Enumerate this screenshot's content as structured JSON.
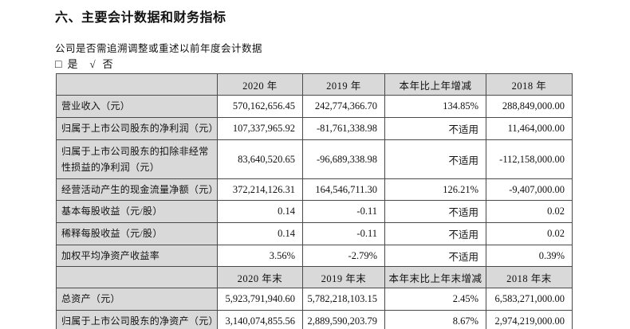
{
  "page": {
    "title": "六、主要会计数据和财务指标",
    "restate_question": "公司是否需追溯调整或重述以前年度会计数据",
    "checkbox": {
      "yes_symbol": "□",
      "yes_label": "是",
      "no_symbol": "√",
      "no_label": "否"
    }
  },
  "colors": {
    "header_bg": "#d9d9d9",
    "border": "#4a4a4a",
    "text": "#111111",
    "page_bg": "#ffffff"
  },
  "table": {
    "header1": [
      "",
      "2020 年",
      "2019 年",
      "本年比上年增减",
      "2018 年"
    ],
    "rows1": [
      {
        "label": "营业收入（元）",
        "y2020": "570,162,656.45",
        "y2019": "242,774,366.70",
        "change": "134.85%",
        "y2018": "288,849,000.00"
      },
      {
        "label": "归属于上市公司股东的净利润（元）",
        "y2020": "107,337,965.92",
        "y2019": "-81,761,338.98",
        "change": "不适用",
        "y2018": "11,464,000.00"
      },
      {
        "label": "归属于上市公司股东的扣除非经常性损益的净利润（元）",
        "y2020": "83,640,520.65",
        "y2019": "-96,689,338.98",
        "change": "不适用",
        "y2018": "-112,158,000.00"
      },
      {
        "label": "经营活动产生的现金流量净额（元）",
        "y2020": "372,214,126.31",
        "y2019": "164,546,711.30",
        "change": "126.21%",
        "y2018": "-9,407,000.00"
      },
      {
        "label": "基本每股收益（元/股）",
        "y2020": "0.14",
        "y2019": "-0.11",
        "change": "不适用",
        "y2018": "0.02"
      },
      {
        "label": "稀释每股收益（元/股）",
        "y2020": "0.14",
        "y2019": "-0.11",
        "change": "不适用",
        "y2018": "0.02"
      },
      {
        "label": "加权平均净资产收益率",
        "y2020": "3.56%",
        "y2019": "-2.79%",
        "change": "不适用",
        "y2018": "0.39%"
      }
    ],
    "header2": [
      "",
      "2020 年末",
      "2019 年末",
      "本年末比上年末增减",
      "2018 年末"
    ],
    "rows2": [
      {
        "label": "总资产（元）",
        "y2020": "5,923,791,940.60",
        "y2019": "5,782,218,103.15",
        "change": "2.45%",
        "y2018": "6,583,271,000.00"
      },
      {
        "label": "归属于上市公司股东的净资产（元）",
        "y2020": "3,140,074,855.56",
        "y2019": "2,889,590,203.79",
        "change": "8.67%",
        "y2018": "2,974,219,000.00"
      }
    ]
  }
}
